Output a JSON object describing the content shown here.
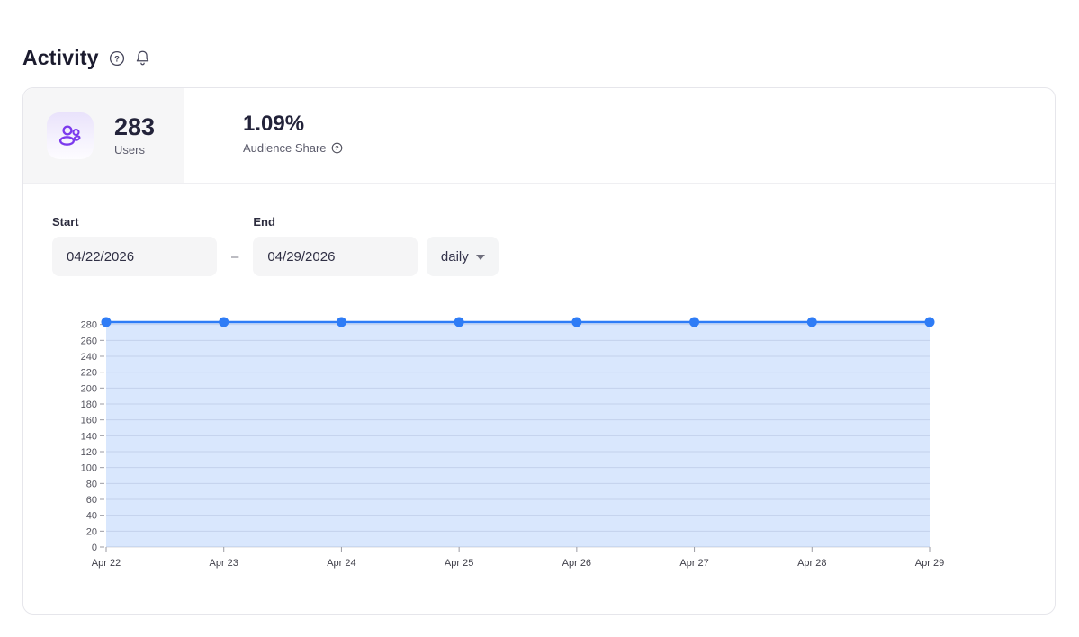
{
  "header": {
    "title": "Activity"
  },
  "icons": {
    "header_help": "help-circle",
    "header_bell": "bell",
    "users_tile": "users",
    "share_help": "help-circle",
    "interval_caret": "chevron-down"
  },
  "colors": {
    "accent_purple": "#7c3aed",
    "chart_blue": "#2e7cf6",
    "card_border": "#e6e6eb",
    "stat_cell_bg": "#f6f6f7",
    "input_bg": "#f5f5f6"
  },
  "stats": {
    "users": {
      "value": "283",
      "label": "Users"
    },
    "audience_share": {
      "value": "1.09%",
      "label": "Audience Share"
    }
  },
  "controls": {
    "start_label": "Start",
    "start_value": "04/22/2026",
    "separator": "–",
    "end_label": "End",
    "end_value": "04/29/2026",
    "interval_value": "daily"
  },
  "chart_data": {
    "type": "area",
    "title": "",
    "xlabel": "",
    "ylabel": "",
    "categories": [
      "Apr 22",
      "Apr 23",
      "Apr 24",
      "Apr 25",
      "Apr 26",
      "Apr 27",
      "Apr 28",
      "Apr 29"
    ],
    "values": [
      283,
      283,
      283,
      283,
      283,
      283,
      283,
      283
    ],
    "y_ticks": [
      0,
      20,
      40,
      60,
      80,
      100,
      120,
      140,
      160,
      180,
      200,
      220,
      240,
      260,
      280
    ],
    "ylim": [
      0,
      283
    ],
    "grid": true,
    "legend": false,
    "line_color": "#2e7cf6",
    "dot_color": "#2e7cf6",
    "fill_opacity": 0.18
  }
}
